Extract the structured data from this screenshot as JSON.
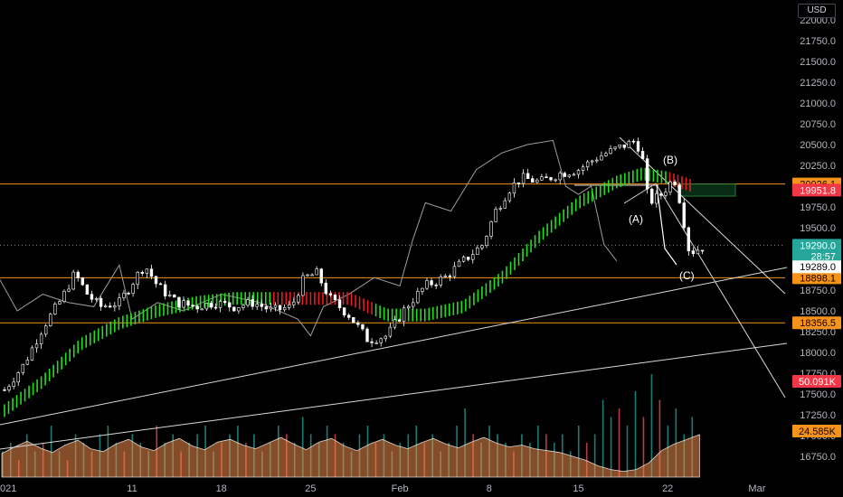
{
  "currency": "USD",
  "colors": {
    "background": "#000000",
    "axis_text": "#b2b5be",
    "candle": "#ffffff",
    "ma_up": "#22e01e",
    "ma_down": "#e81b23",
    "horizontal_level": "#f7931a",
    "trendline": "#d9d9d9",
    "volume_up": "#26a69a",
    "volume_down": "#ef5350",
    "volume_ma_fill": "#f08a4b"
  },
  "chart_data": {
    "type": "candlestick",
    "ylim": [
      16500,
      22000
    ],
    "y_ticks": [
      "22000.0",
      "21750.0",
      "21500.0",
      "21250.0",
      "21000.0",
      "20750.0",
      "20500.0",
      "20250.0",
      "20000.0",
      "19750.0",
      "19500.0",
      "19250.0",
      "19000.0",
      "18750.0",
      "18500.0",
      "18250.0",
      "18000.0",
      "17750.0",
      "17500.0",
      "17250.0",
      "17000.0",
      "16750.0"
    ],
    "x_ticks": [
      {
        "label": "2021",
        "day": 0
      },
      {
        "label": "11",
        "day": 10
      },
      {
        "label": "18",
        "day": 17
      },
      {
        "label": "25",
        "day": 24
      },
      {
        "label": "Feb",
        "day": 31
      },
      {
        "label": "8",
        "day": 38
      },
      {
        "label": "15",
        "day": 45
      },
      {
        "label": "22",
        "day": 52
      },
      {
        "label": "Mar",
        "day": 59
      }
    ],
    "x_first_label_text": "021",
    "price_path": [
      [
        0,
        17550
      ],
      [
        1.5,
        17850
      ],
      [
        3,
        18300
      ],
      [
        4.5,
        18650
      ],
      [
        5.5,
        18950
      ],
      [
        6.5,
        18700
      ],
      [
        7.5,
        18550
      ],
      [
        9,
        18600
      ],
      [
        10.5,
        18950
      ],
      [
        11,
        19050
      ],
      [
        12,
        18800
      ],
      [
        13.5,
        18600
      ],
      [
        15,
        18550
      ],
      [
        16.5,
        18600
      ],
      [
        18,
        18550
      ],
      [
        19.5,
        18600
      ],
      [
        21,
        18500
      ],
      [
        22.5,
        18550
      ],
      [
        23.5,
        18900
      ],
      [
        24.5,
        18950
      ],
      [
        25.5,
        18650
      ],
      [
        27,
        18450
      ],
      [
        28.5,
        18150
      ],
      [
        30,
        18200
      ],
      [
        31.5,
        18550
      ],
      [
        33,
        18800
      ],
      [
        34.5,
        18900
      ],
      [
        36,
        19100
      ],
      [
        37.5,
        19300
      ],
      [
        38.5,
        19700
      ],
      [
        39.5,
        19950
      ],
      [
        40.5,
        20100
      ],
      [
        42,
        20050
      ],
      [
        43.5,
        20150
      ],
      [
        45,
        20200
      ],
      [
        46.5,
        20350
      ],
      [
        48,
        20450
      ],
      [
        49.5,
        20550
      ],
      [
        50,
        20350
      ],
      [
        50.5,
        19800
      ],
      [
        51.5,
        19900
      ],
      [
        52.5,
        20100
      ],
      [
        53,
        19800
      ],
      [
        53.7,
        19200
      ],
      [
        54.5,
        19250
      ],
      [
        55,
        19300
      ]
    ],
    "moving_average": [
      [
        0,
        17300
      ],
      [
        3,
        17650
      ],
      [
        6,
        18100
      ],
      [
        9,
        18350
      ],
      [
        12,
        18500
      ],
      [
        15,
        18600
      ],
      [
        18,
        18650
      ],
      [
        21,
        18650
      ],
      [
        24,
        18650
      ],
      [
        27,
        18650
      ],
      [
        30,
        18450
      ],
      [
        33,
        18450
      ],
      [
        36,
        18550
      ],
      [
        39,
        18900
      ],
      [
        42,
        19400
      ],
      [
        45,
        19800
      ],
      [
        48,
        20050
      ],
      [
        50,
        20150
      ],
      [
        52,
        20100
      ],
      [
        54,
        20000
      ]
    ],
    "ma_red_segments": [
      [
        21,
        29
      ],
      [
        52,
        54
      ]
    ],
    "cloud_line": [
      [
        -1,
        19050
      ],
      [
        1,
        18500
      ],
      [
        3,
        18700
      ],
      [
        5,
        18600
      ],
      [
        7,
        18550
      ],
      [
        9,
        19050
      ],
      [
        10,
        18400
      ],
      [
        12,
        18600
      ],
      [
        14,
        18500
      ],
      [
        17,
        18700
      ],
      [
        20,
        18600
      ],
      [
        23,
        18400
      ],
      [
        24,
        18200
      ],
      [
        25,
        18550
      ],
      [
        27,
        18700
      ],
      [
        29,
        18900
      ],
      [
        31,
        18800
      ],
      [
        32,
        19350
      ],
      [
        33,
        19800
      ],
      [
        35,
        19700
      ],
      [
        37,
        20200
      ],
      [
        39,
        20400
      ],
      [
        41,
        20500
      ],
      [
        43,
        20550
      ],
      [
        44,
        20000
      ],
      [
        45,
        19900
      ],
      [
        46,
        20000
      ],
      [
        47,
        19300
      ],
      [
        48,
        19100
      ]
    ],
    "volume": [
      3,
      4,
      2,
      5,
      3,
      4,
      6,
      3,
      2,
      5,
      4,
      3,
      5,
      6,
      4,
      3,
      5,
      4,
      3,
      6,
      4,
      5,
      3,
      4,
      5,
      6,
      3,
      4,
      5,
      6,
      4,
      5,
      3,
      4,
      6,
      5,
      4,
      7,
      5,
      4,
      6,
      5,
      4,
      3,
      5,
      6,
      4,
      5,
      3,
      4,
      5,
      6,
      4,
      5,
      3,
      4,
      6,
      8,
      5,
      4,
      6,
      5,
      4,
      3,
      5,
      4,
      6,
      5,
      4,
      5,
      3,
      6,
      4,
      5,
      9,
      7,
      8,
      6,
      10,
      7,
      12,
      9,
      6,
      8,
      5,
      7
    ],
    "volume_ma": [
      2.5,
      3.2,
      3.8,
      3.1,
      2.6,
      3.4,
      3.9,
      3.0,
      2.7,
      3.5,
      4.0,
      3.2,
      2.8,
      3.6,
      4.1,
      3.3,
      2.9,
      3.7,
      4.0,
      3.4,
      3.0,
      3.6,
      4.2,
      3.5,
      2.9,
      3.7,
      4.1,
      3.3,
      2.8,
      3.5,
      4.0,
      3.4,
      3.0,
      3.6,
      4.1,
      3.5,
      3.1,
      3.7,
      4.2,
      3.6,
      3.2,
      3.4,
      3.0,
      2.8,
      2.6,
      2.2,
      1.8,
      1.2,
      0.8,
      0.6,
      0.8,
      1.5,
      2.8,
      3.5,
      4.0,
      4.5
    ],
    "volume_red_bars": [
      2,
      5,
      8,
      11,
      15,
      19,
      22,
      27,
      30,
      35,
      41,
      46,
      52,
      58,
      63,
      67,
      72,
      76,
      79,
      81
    ],
    "levels": [
      {
        "price": 20026.1,
        "label": "20026.1",
        "bg": "#f7931a",
        "fg": "#000000",
        "line": true
      },
      {
        "price": 18898.1,
        "label": "18898.1",
        "bg": "#f7931a",
        "fg": "#000000",
        "line": true
      },
      {
        "price": 18356.5,
        "label": "18356.5",
        "bg": "#f7931a",
        "fg": "#000000",
        "line": true
      }
    ],
    "price_badges": [
      {
        "price": 19951.8,
        "label": "19951.8",
        "bg": "#f23645",
        "fg": "#ffffff"
      },
      {
        "price": 19290.0,
        "label": "19290.0",
        "bg": "#26a69a",
        "fg": "#ffffff"
      },
      {
        "price": 19160.0,
        "label": "28:57",
        "bg": "#26a69a",
        "fg": "#ffffff"
      },
      {
        "price": 19030.0,
        "label": "19289.0",
        "bg": "#ffffff",
        "fg": "#000000"
      }
    ],
    "volume_badges": [
      {
        "label": "50.091K",
        "bg": "#f23645",
        "fg": "#ffffff"
      },
      {
        "label": "24.585K",
        "bg": "#f7931a",
        "fg": "#000000"
      }
    ],
    "wave_labels": [
      {
        "text": "(A)",
        "day": 49.5,
        "price": 19560
      },
      {
        "text": "(B)",
        "day": 52.2,
        "price": 20270
      },
      {
        "text": "(C)",
        "day": 53.5,
        "price": 18880
      }
    ],
    "current_price_dotted": 19289.0
  }
}
